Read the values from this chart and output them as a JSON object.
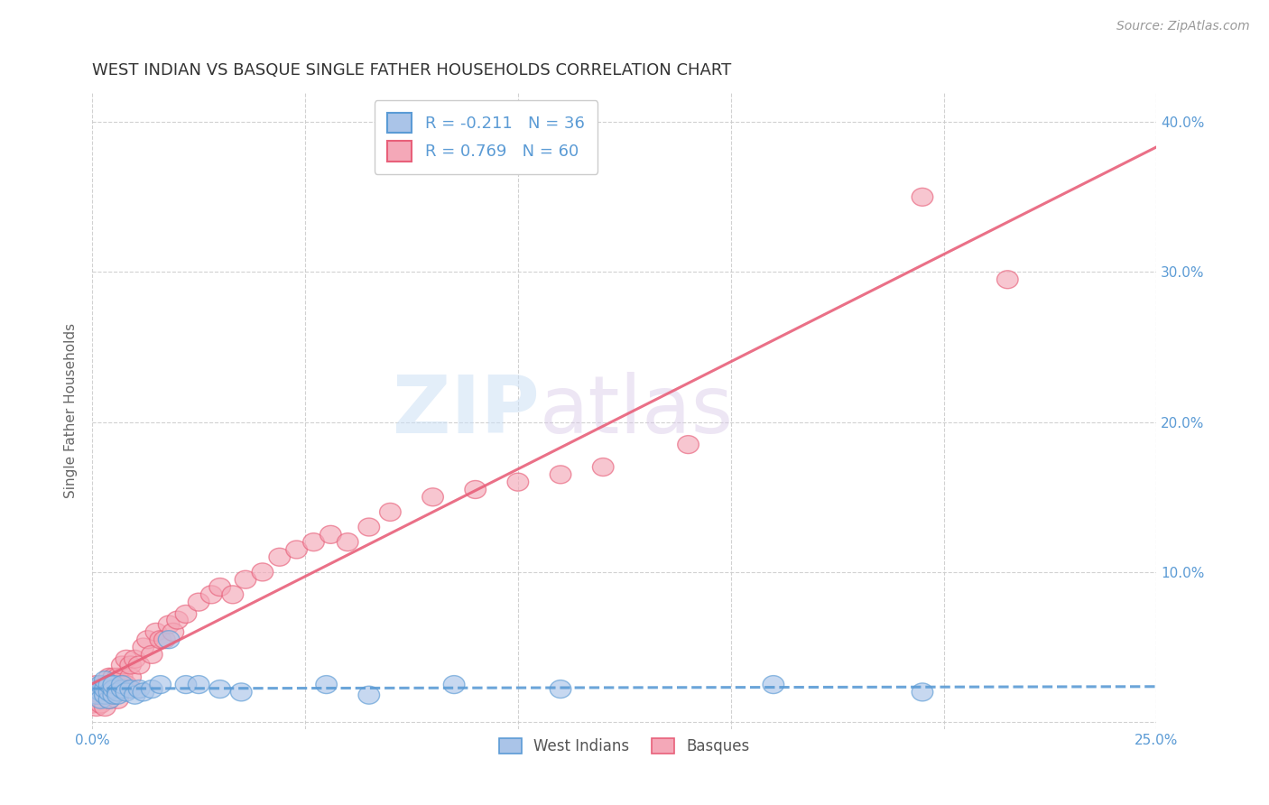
{
  "title": "WEST INDIAN VS BASQUE SINGLE FATHER HOUSEHOLDS CORRELATION CHART",
  "source": "Source: ZipAtlas.com",
  "ylabel": "Single Father Households",
  "xlim": [
    0.0,
    0.25
  ],
  "ylim": [
    -0.005,
    0.42
  ],
  "grid_color": "#cccccc",
  "background_color": "#ffffff",
  "title_fontsize": 13,
  "title_color": "#333333",
  "west_indians_color": "#aac4e8",
  "basques_color": "#f4a8b8",
  "west_indians_line_color": "#5b9bd5",
  "basques_line_color": "#e8607a",
  "R_west": -0.211,
  "N_west": 36,
  "R_basque": 0.769,
  "N_basque": 60,
  "legend_label_west": "West Indians",
  "legend_label_basque": "Basques",
  "watermark_zip": "ZIP",
  "watermark_atlas": "atlas",
  "west_indians_x": [
    0.001,
    0.001,
    0.002,
    0.002,
    0.002,
    0.003,
    0.003,
    0.003,
    0.004,
    0.004,
    0.004,
    0.005,
    0.005,
    0.005,
    0.006,
    0.006,
    0.007,
    0.007,
    0.008,
    0.009,
    0.01,
    0.011,
    0.012,
    0.014,
    0.016,
    0.018,
    0.022,
    0.025,
    0.03,
    0.035,
    0.055,
    0.065,
    0.085,
    0.11,
    0.16,
    0.195
  ],
  "west_indians_y": [
    0.022,
    0.018,
    0.02,
    0.025,
    0.015,
    0.018,
    0.022,
    0.028,
    0.015,
    0.02,
    0.025,
    0.018,
    0.022,
    0.025,
    0.02,
    0.018,
    0.022,
    0.025,
    0.02,
    0.022,
    0.018,
    0.022,
    0.02,
    0.022,
    0.025,
    0.055,
    0.025,
    0.025,
    0.022,
    0.02,
    0.025,
    0.018,
    0.025,
    0.022,
    0.025,
    0.02
  ],
  "basques_x": [
    0.0,
    0.001,
    0.001,
    0.001,
    0.002,
    0.002,
    0.002,
    0.003,
    0.003,
    0.003,
    0.004,
    0.004,
    0.004,
    0.004,
    0.005,
    0.005,
    0.005,
    0.006,
    0.006,
    0.006,
    0.007,
    0.007,
    0.007,
    0.008,
    0.008,
    0.009,
    0.009,
    0.01,
    0.011,
    0.012,
    0.013,
    0.014,
    0.015,
    0.016,
    0.017,
    0.018,
    0.019,
    0.02,
    0.022,
    0.025,
    0.028,
    0.03,
    0.033,
    0.036,
    0.04,
    0.044,
    0.048,
    0.052,
    0.056,
    0.06,
    0.065,
    0.07,
    0.08,
    0.09,
    0.1,
    0.11,
    0.12,
    0.14,
    0.195,
    0.215
  ],
  "basques_y": [
    0.012,
    0.01,
    0.018,
    0.025,
    0.012,
    0.018,
    0.022,
    0.01,
    0.018,
    0.025,
    0.015,
    0.02,
    0.025,
    0.03,
    0.018,
    0.022,
    0.03,
    0.025,
    0.03,
    0.015,
    0.025,
    0.03,
    0.038,
    0.025,
    0.042,
    0.03,
    0.038,
    0.042,
    0.038,
    0.05,
    0.055,
    0.045,
    0.06,
    0.055,
    0.055,
    0.065,
    0.06,
    0.068,
    0.072,
    0.08,
    0.085,
    0.09,
    0.085,
    0.095,
    0.1,
    0.11,
    0.115,
    0.12,
    0.125,
    0.12,
    0.13,
    0.14,
    0.15,
    0.155,
    0.16,
    0.165,
    0.17,
    0.185,
    0.35,
    0.295
  ]
}
